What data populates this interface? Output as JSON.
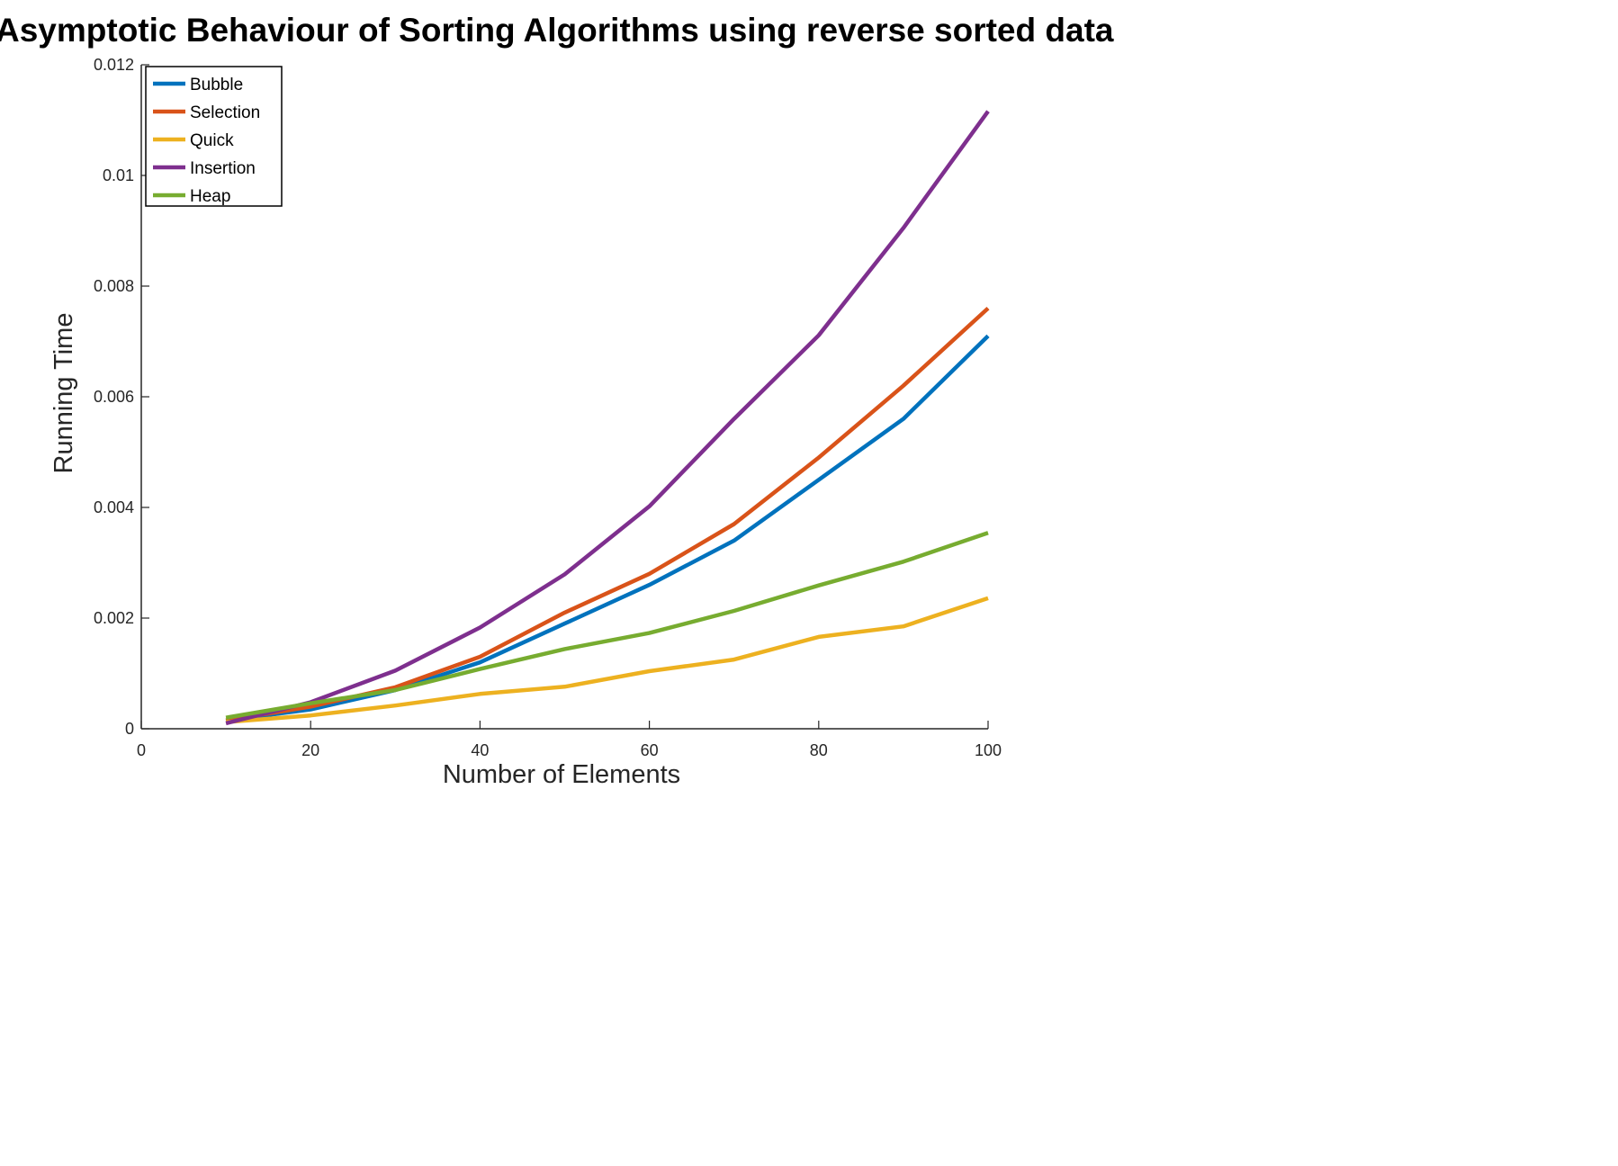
{
  "chart_data": {
    "type": "line",
    "title": "Asymptotic Behaviour of Sorting Algorithms using reverse sorted data",
    "xlabel": "Number of Elements",
    "ylabel": "Running Time",
    "xlim": [
      0,
      100
    ],
    "ylim": [
      0,
      0.012
    ],
    "xticks": [
      0,
      20,
      40,
      60,
      80,
      100
    ],
    "xtick_labels": [
      "0",
      "20",
      "40",
      "60",
      "80",
      "100"
    ],
    "yticks": [
      0,
      0.002,
      0.004,
      0.006,
      0.008,
      0.01,
      0.012
    ],
    "ytick_labels": [
      "0",
      "0.002",
      "0.004",
      "0.006",
      "0.008",
      "0.01",
      "0.012"
    ],
    "grid": false,
    "legend_position": "top-left",
    "x": [
      10,
      20,
      30,
      40,
      50,
      60,
      70,
      80,
      90,
      100
    ],
    "series": [
      {
        "name": "Bubble",
        "color": "#0072BD",
        "values": [
          0.00015,
          0.00035,
          0.0007,
          0.0012,
          0.0019,
          0.0026,
          0.0034,
          0.0045,
          0.0056,
          0.0071
        ]
      },
      {
        "name": "Selection",
        "color": "#D95319",
        "values": [
          0.00015,
          0.0004,
          0.00075,
          0.0013,
          0.0021,
          0.0028,
          0.0037,
          0.0049,
          0.0062,
          0.0076
        ]
      },
      {
        "name": "Quick",
        "color": "#EDB120",
        "values": [
          0.00012,
          0.00024,
          0.00042,
          0.00063,
          0.00076,
          0.00104,
          0.00125,
          0.00166,
          0.00185,
          0.00236
        ]
      },
      {
        "name": "Insertion",
        "color": "#7E2F8E",
        "values": [
          0.0001,
          0.00048,
          0.00105,
          0.00183,
          0.00279,
          0.00402,
          0.0056,
          0.00711,
          0.00905,
          0.01116
        ]
      },
      {
        "name": "Heap",
        "color": "#77AC30",
        "values": [
          0.0002,
          0.00046,
          0.0007,
          0.00108,
          0.00144,
          0.00173,
          0.00213,
          0.00259,
          0.00302,
          0.00354
        ]
      }
    ]
  }
}
